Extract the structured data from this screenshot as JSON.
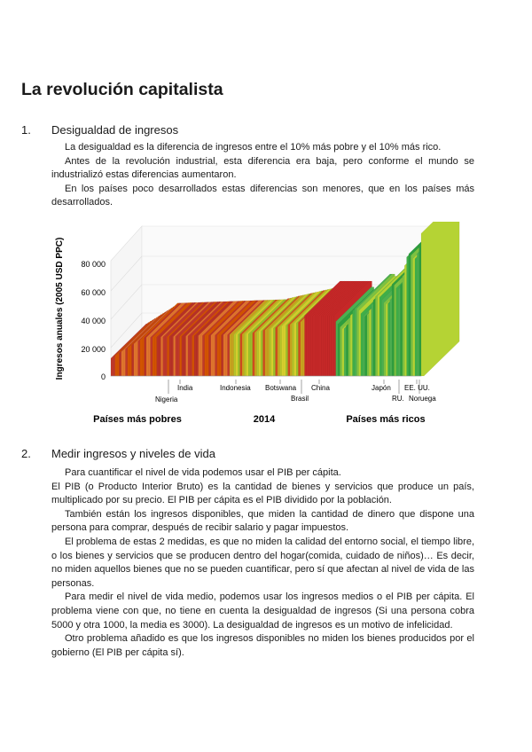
{
  "title": "La revolución capitalista",
  "sections": [
    {
      "number": "1.",
      "heading": "Desigualdad de ingresos",
      "paragraphs": [
        "La desigualdad es la diferencia de ingresos entre el 10% más pobre y el 10% más rico.",
        "Antes de la revolución industrial, esta diferencia era baja, pero conforme el mundo se industrializó estas diferencias aumentaron.",
        "En los países poco desarrollados estas diferencias son menores, que en los países más desarrollados."
      ]
    },
    {
      "number": "2.",
      "heading": "Medir ingresos y niveles de vida",
      "paragraphs": [
        "Para cuantificar el nivel de vida podemos usar el PIB per cápita.",
        "El PIB (o Producto Interior Bruto) es la cantidad de bienes y servicios que produce un país, multiplicado por su precio. El PIB per cápita es el PIB dividido por la población.",
        "También están los ingresos disponibles, que miden la cantidad de dinero que dispone una persona para comprar, después de recibir salario y pagar impuestos.",
        "El problema de estas 2 medidas, es que no miden la calidad del entorno social, el tiempo libre, o los bienes y servicios que se producen dentro del hogar(comida, cuidado de niños)… Es decir, no miden aquellos bienes que no se pueden cuantificar, pero sí que afectan al nivel de vida de las personas.",
        "Para medir el nivel de vida medio, podemos usar los ingresos medios o el PIB per cápita. El problema viene con que, no tiene en cuenta la desigualdad de ingresos (Si una persona cobra 5000 y otra 1000, la media es 3000). La desigualdad de ingresos es un motivo de infelicidad.",
        "Otro problema añadido es que los ingresos disponibles no miden los bienes producidos por el gobierno (El PIB per cápita sí)."
      ]
    }
  ],
  "figure": {
    "y_axis_label": "Ingresos anuales (2005 USD PPC)",
    "y_tick_labels": [
      "80 000",
      "60 000",
      "40 000",
      "20 000",
      "0"
    ],
    "countries": [
      "India",
      "Nigeria",
      "Indonesia",
      "Botswana",
      "Brasil",
      "China",
      "Japón",
      "RU.",
      "EE. UU.",
      "Noruega"
    ],
    "footer": [
      "Países más pobres",
      "2014",
      "Países más ricos"
    ]
  }
}
